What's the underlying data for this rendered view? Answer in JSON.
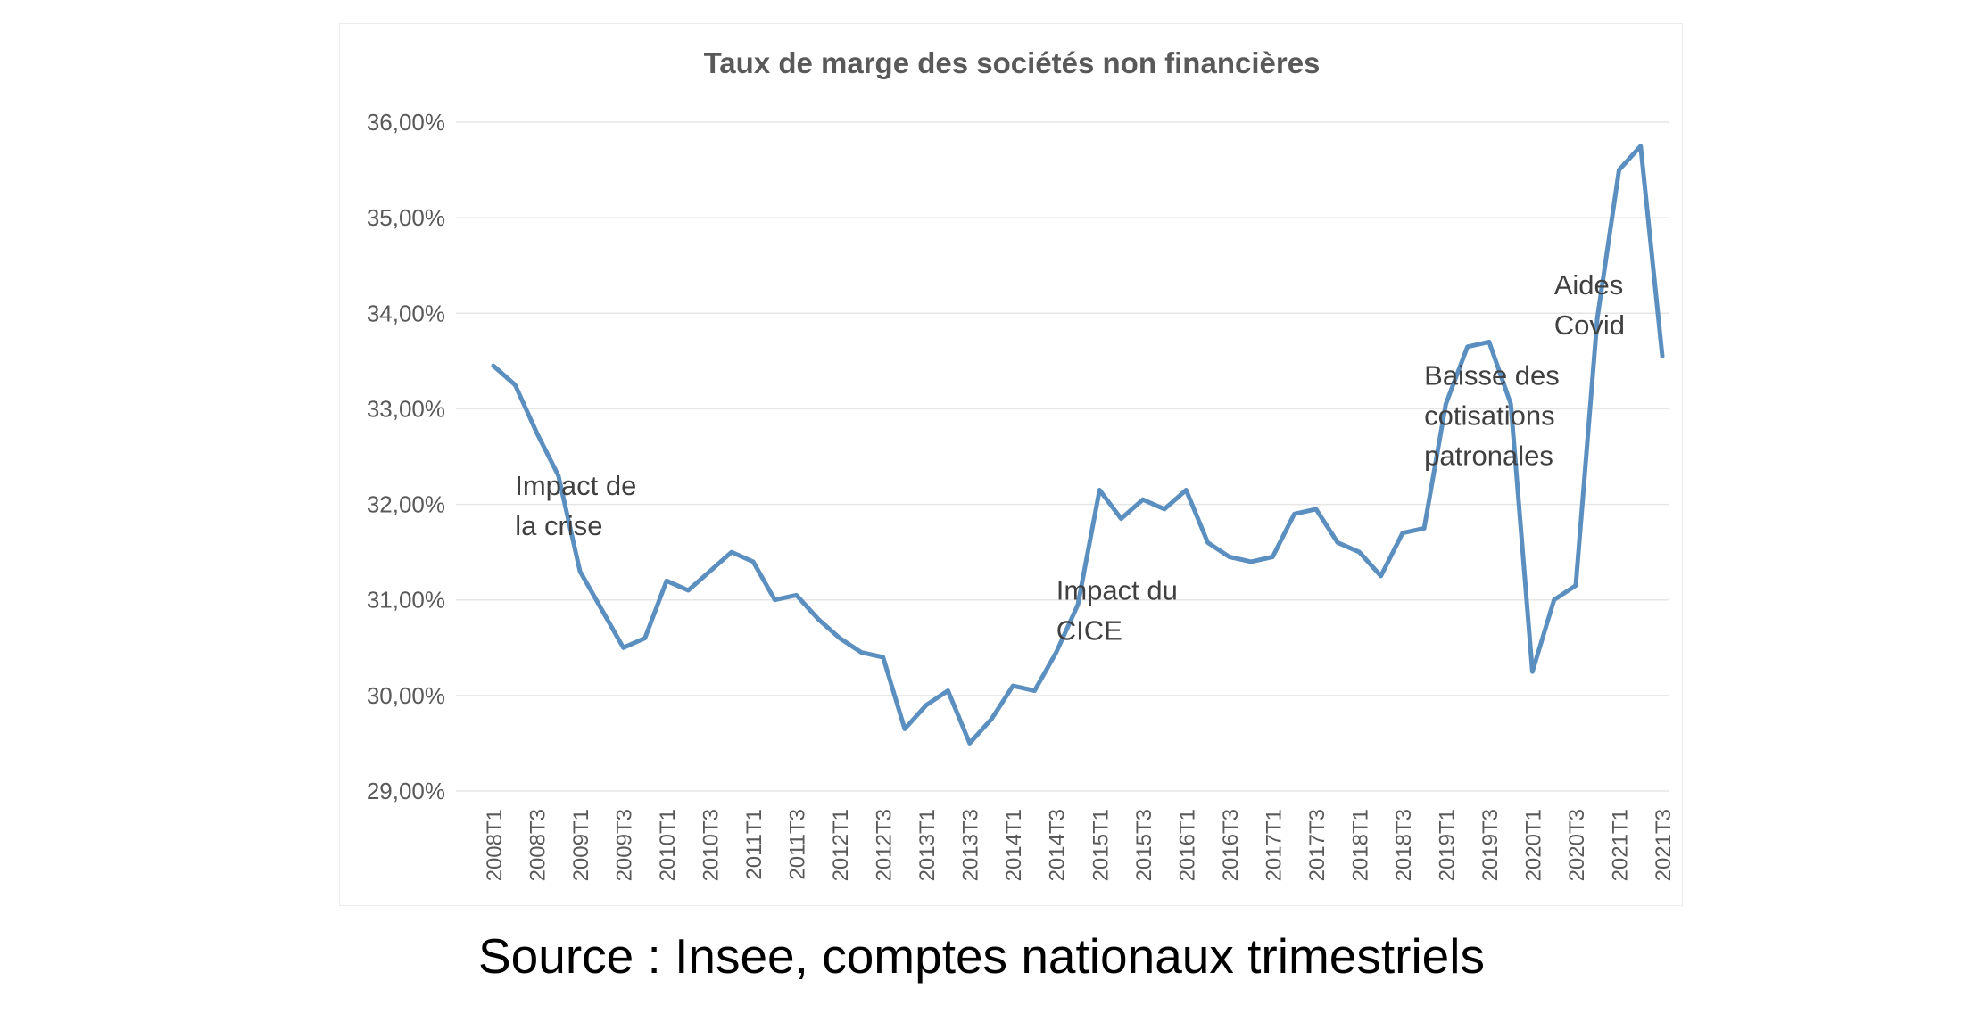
{
  "source_caption": "Source : Insee, comptes nationaux trimestriels",
  "colors": {
    "series": "#5b8fc0",
    "grid": "#e6e6e6",
    "text": "#595959"
  },
  "chart_data": {
    "type": "line",
    "title": "Taux de marge des sociétés non financières",
    "xlabel": "",
    "ylabel": "",
    "ylim": [
      29,
      36
    ],
    "y_ticks": [
      "29,00%",
      "30,00%",
      "31,00%",
      "32,00%",
      "33,00%",
      "34,00%",
      "35,00%",
      "36,00%"
    ],
    "y_unit": "%",
    "grid": true,
    "x_tick_labels": [
      "2008T1",
      "2008T3",
      "2009T1",
      "2009T3",
      "2010T1",
      "2010T3",
      "2011T1",
      "2011T3",
      "2012T1",
      "2012T3",
      "2013T1",
      "2013T3",
      "2014T1",
      "2014T3",
      "2015T1",
      "2015T3",
      "2016T1",
      "2016T3",
      "2017T1",
      "2017T3",
      "2018T1",
      "2018T3",
      "2019T1",
      "2019T3",
      "2020T1",
      "2020T3",
      "2021T1",
      "2021T3"
    ],
    "categories": [
      "2008T1",
      "2008T2",
      "2008T3",
      "2008T4",
      "2009T1",
      "2009T2",
      "2009T3",
      "2009T4",
      "2010T1",
      "2010T2",
      "2010T3",
      "2010T4",
      "2011T1",
      "2011T2",
      "2011T3",
      "2011T4",
      "2012T1",
      "2012T2",
      "2012T3",
      "2012T4",
      "2013T1",
      "2013T2",
      "2013T3",
      "2013T4",
      "2014T1",
      "2014T2",
      "2014T3",
      "2014T4",
      "2015T1",
      "2015T2",
      "2015T3",
      "2015T4",
      "2016T1",
      "2016T2",
      "2016T3",
      "2016T4",
      "2017T1",
      "2017T2",
      "2017T3",
      "2017T4",
      "2018T1",
      "2018T2",
      "2018T3",
      "2018T4",
      "2019T1",
      "2019T2",
      "2019T3",
      "2019T4",
      "2020T1",
      "2020T2",
      "2020T3",
      "2020T4",
      "2021T1",
      "2021T2",
      "2021T3"
    ],
    "series": [
      {
        "values": [
          33.45,
          33.25,
          32.75,
          32.3,
          31.3,
          30.9,
          30.5,
          30.6,
          31.2,
          31.1,
          31.3,
          31.5,
          31.4,
          31.0,
          31.05,
          30.8,
          30.6,
          30.45,
          30.4,
          29.65,
          29.9,
          30.05,
          29.5,
          29.75,
          30.1,
          30.05,
          30.45,
          30.95,
          32.15,
          31.85,
          32.05,
          31.95,
          32.15,
          31.6,
          31.45,
          31.4,
          31.45,
          31.9,
          31.95,
          31.6,
          31.5,
          31.25,
          31.7,
          31.75,
          33.05,
          33.65,
          33.7,
          33.05,
          30.25,
          31.0,
          31.15,
          33.95,
          35.5,
          35.75,
          33.55
        ]
      }
    ],
    "annotations": [
      {
        "lines": [
          "Impact de",
          "la crise"
        ],
        "category": "2008T2",
        "y": 32.1
      },
      {
        "lines": [
          "Impact du",
          "CICE"
        ],
        "category": "2014T3",
        "y": 31.0
      },
      {
        "lines": [
          "Baisse des",
          "cotisations",
          "patronales"
        ],
        "category": "2018T4",
        "y": 33.25
      },
      {
        "lines": [
          "Aides",
          "Covid"
        ],
        "category": "2020T2",
        "y": 34.2
      }
    ]
  }
}
